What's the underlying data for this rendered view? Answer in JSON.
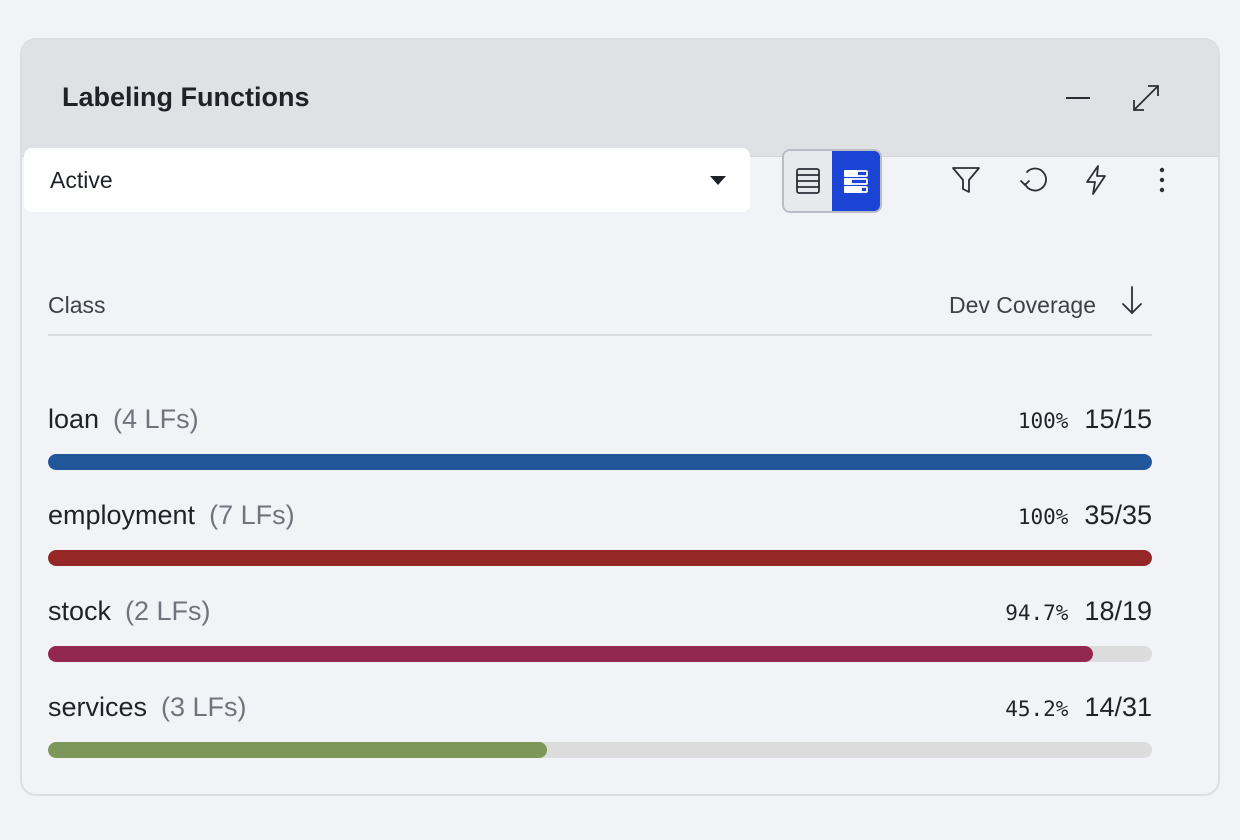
{
  "panel": {
    "title": "Labeling Functions"
  },
  "toolbar": {
    "filter_select": {
      "value": "Active"
    },
    "view_toggle": {
      "selected": "bar-view"
    }
  },
  "table": {
    "header": {
      "class_label": "Class",
      "coverage_label": "Dev Coverage",
      "sort": "descending"
    },
    "rows": [
      {
        "name": "loan",
        "lfs": "(4 LFs)",
        "pct": "100%",
        "frac": "15/15",
        "fill": 1.0,
        "color": "#22569a"
      },
      {
        "name": "employment",
        "lfs": "(7 LFs)",
        "pct": "100%",
        "frac": "35/35",
        "fill": 1.0,
        "color": "#952827"
      },
      {
        "name": "stock",
        "lfs": "(2 LFs)",
        "pct": "94.7%",
        "frac": "18/19",
        "fill": 0.947,
        "color": "#93274e"
      },
      {
        "name": "services",
        "lfs": "(3 LFs)",
        "pct": "45.2%",
        "frac": "14/31",
        "fill": 0.452,
        "color": "#7c9759"
      }
    ]
  },
  "icons": {
    "minimize": "minimize-icon",
    "expand": "expand-icon",
    "list_view": "list-view-icon",
    "bar_view": "bar-view-icon",
    "filter": "filter-icon",
    "refresh": "refresh-icon",
    "lightning": "lightning-icon",
    "more": "more-vertical-icon",
    "sort": "arrow-down-icon"
  }
}
